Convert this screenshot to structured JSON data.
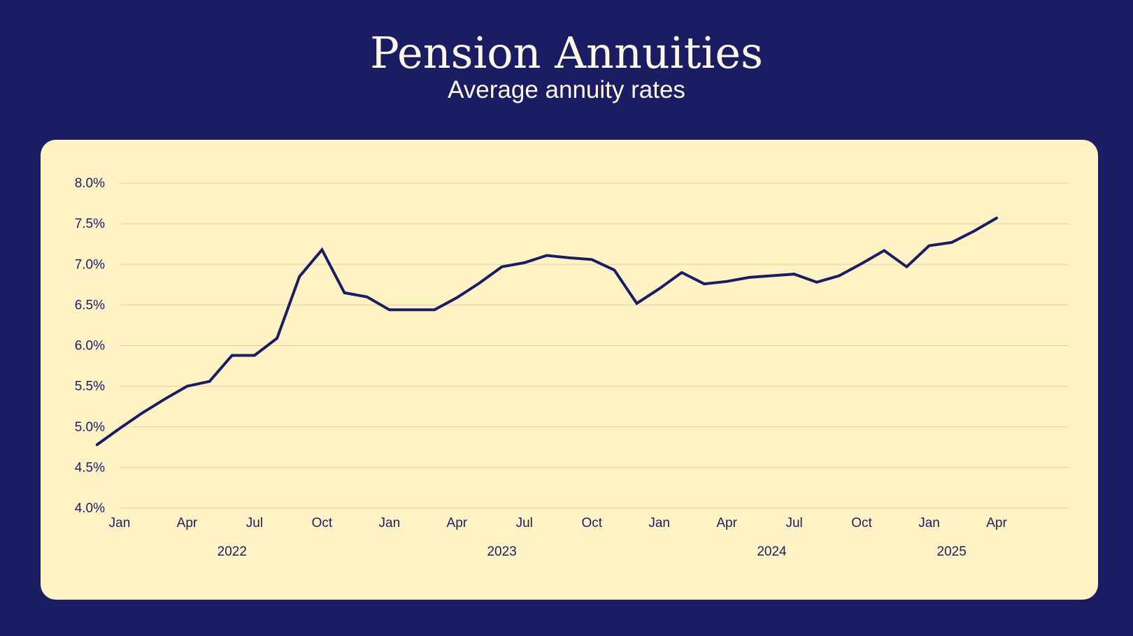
{
  "colors": {
    "background": "#1b1d63",
    "card": "#fff3c6",
    "line": "#1b1d63",
    "grid": "#ddd2a8",
    "title_text": "#fdf8e6"
  },
  "chart_data": {
    "type": "line",
    "title": "Pension Annuities",
    "subtitle": "Average annuity rates",
    "xlabel": "",
    "ylabel": "",
    "grid": true,
    "y_range": [
      4.0,
      8.0
    ],
    "y_ticks": [
      "8.0%",
      "7.5%",
      "7.0%",
      "6.5%",
      "6.0%",
      "5.5%",
      "5.0%",
      "4.5%",
      "4.0%"
    ],
    "y_tick_values": [
      8.0,
      7.5,
      7.0,
      6.5,
      6.0,
      5.5,
      5.0,
      4.5,
      4.0
    ],
    "x_range": [
      "2022-01",
      "2025-04"
    ],
    "x_month_ticks": [
      {
        "label": "Jan",
        "date": "2022-01"
      },
      {
        "label": "Apr",
        "date": "2022-04"
      },
      {
        "label": "Jul",
        "date": "2022-07"
      },
      {
        "label": "Oct",
        "date": "2022-10"
      },
      {
        "label": "Jan",
        "date": "2023-01"
      },
      {
        "label": "Apr",
        "date": "2023-04"
      },
      {
        "label": "Jul",
        "date": "2023-07"
      },
      {
        "label": "Oct",
        "date": "2023-10"
      },
      {
        "label": "Jan",
        "date": "2024-01"
      },
      {
        "label": "Apr",
        "date": "2024-04"
      },
      {
        "label": "Jul",
        "date": "2024-07"
      },
      {
        "label": "Oct",
        "date": "2024-10"
      },
      {
        "label": "Jan",
        "date": "2025-01"
      },
      {
        "label": "Apr",
        "date": "2025-04"
      }
    ],
    "x_year_labels": [
      {
        "label": "2022",
        "date": "2022-06"
      },
      {
        "label": "2023",
        "date": "2023-06"
      },
      {
        "label": "2024",
        "date": "2024-06"
      },
      {
        "label": "2025",
        "date": "2025-02"
      }
    ],
    "series": [
      {
        "x": [
          "2021-12",
          "2022-01",
          "2022-02",
          "2022-03",
          "2022-04",
          "2022-05",
          "2022-06",
          "2022-07",
          "2022-08",
          "2022-09",
          "2022-10",
          "2022-11",
          "2022-12",
          "2023-01",
          "2023-02",
          "2023-03",
          "2023-04",
          "2023-05",
          "2023-06",
          "2023-07",
          "2023-08",
          "2023-09",
          "2023-10",
          "2023-11",
          "2023-12",
          "2024-01",
          "2024-02",
          "2024-03",
          "2024-04",
          "2024-05",
          "2024-06",
          "2024-07",
          "2024-08",
          "2024-09",
          "2024-10",
          "2024-11",
          "2024-12",
          "2025-01",
          "2025-02",
          "2025-03",
          "2025-04"
        ],
        "values": [
          4.78,
          4.98,
          5.17,
          5.34,
          5.5,
          5.56,
          5.88,
          5.88,
          6.09,
          6.85,
          7.18,
          6.65,
          6.6,
          6.44,
          6.44,
          6.44,
          6.59,
          6.77,
          6.97,
          7.02,
          7.11,
          7.08,
          7.06,
          6.93,
          6.52,
          6.7,
          6.9,
          6.76,
          6.79,
          6.84,
          6.86,
          6.88,
          6.78,
          6.86,
          7.01,
          7.17,
          6.97,
          7.23,
          7.27,
          7.41,
          7.57
        ]
      }
    ]
  }
}
